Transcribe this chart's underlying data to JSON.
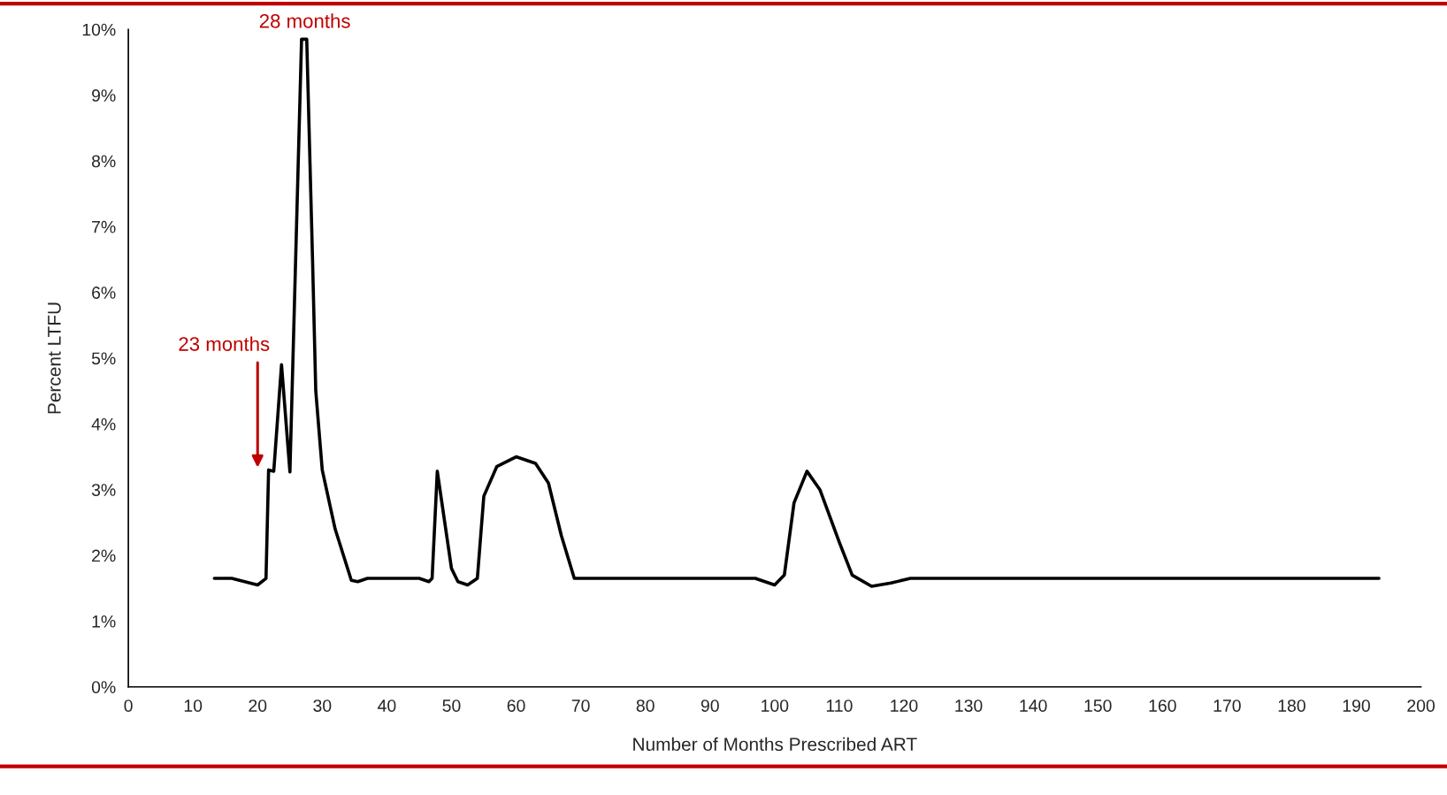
{
  "chart_data": {
    "type": "line",
    "xlabel": "Number of Months Prescribed ART",
    "ylabel": "Percent LTFU",
    "x": [
      13.3,
      16,
      20,
      21.3,
      21.7,
      22.5,
      23.7,
      25,
      26.8,
      27.6,
      28.5,
      29,
      30,
      32,
      34.5,
      35.5,
      37,
      45,
      46.5,
      47,
      47.8,
      50,
      51,
      52.5,
      54,
      55,
      57,
      60,
      63,
      65,
      67,
      69,
      70,
      97,
      100,
      101.5,
      103,
      105,
      107,
      110,
      112,
      115,
      118,
      121,
      193.5
    ],
    "series": [
      {
        "color": "#000000",
        "values": [
          1.65,
          1.65,
          1.55,
          1.65,
          3.3,
          3.28,
          4.9,
          3.27,
          9.85,
          9.85,
          6.5,
          4.5,
          3.3,
          2.4,
          1.62,
          1.6,
          1.65,
          1.65,
          1.6,
          1.65,
          3.28,
          1.8,
          1.6,
          1.55,
          1.65,
          2.9,
          3.35,
          3.5,
          3.4,
          3.1,
          2.3,
          1.65,
          1.65,
          1.65,
          1.55,
          1.7,
          2.8,
          3.28,
          3.0,
          2.2,
          1.7,
          1.53,
          1.58,
          1.65,
          1.65
        ]
      }
    ],
    "annotations": [
      {
        "text": "28 months",
        "x": 27.3,
        "y": 9.85
      },
      "23 months"
    ],
    "xlim": [
      0,
      200
    ],
    "xticks": [
      0,
      10,
      20,
      30,
      40,
      50,
      60,
      70,
      80,
      90,
      100,
      110,
      120,
      130,
      140,
      150,
      160,
      170,
      180,
      190,
      200
    ],
    "ylim": [
      0,
      10
    ],
    "yticks": [
      {
        "value": 0,
        "label": "0%"
      },
      {
        "value": 1,
        "label": "1%"
      },
      {
        "value": 2,
        "label": "2%"
      },
      {
        "value": 3,
        "label": "3%"
      },
      {
        "value": 4,
        "label": "4%"
      },
      {
        "value": 5,
        "label": "5%"
      },
      {
        "value": 6,
        "label": "6%"
      },
      {
        "value": 7,
        "label": "7%"
      },
      {
        "value": 8,
        "label": "8%"
      },
      {
        "value": 9,
        "label": "9%"
      },
      {
        "value": 10,
        "label": "10%"
      }
    ],
    "grid": false,
    "legend": false,
    "marker": "none",
    "line_style": "solid"
  }
}
